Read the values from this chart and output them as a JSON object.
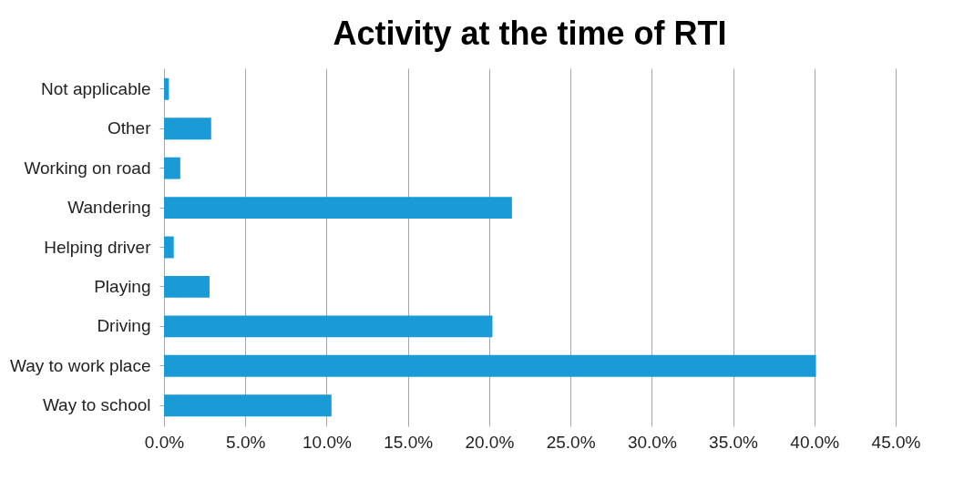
{
  "chart_data": {
    "type": "bar",
    "orientation": "horizontal",
    "title": "Activity at the time of RTI",
    "categories": [
      "Not applicable",
      "Other",
      "Working on road",
      "Wandering",
      "Helping driver",
      "Playing",
      "Driving",
      "Way to work place",
      "Way to school"
    ],
    "values": [
      0.3,
      2.9,
      1.0,
      21.4,
      0.6,
      2.8,
      20.2,
      40.1,
      10.3
    ],
    "color": "#1a9ad6",
    "xlim": [
      0,
      45
    ],
    "xticks": [
      {
        "value": 0,
        "label": "0.0%"
      },
      {
        "value": 5,
        "label": "5.0%"
      },
      {
        "value": 10,
        "label": "10.0%"
      },
      {
        "value": 15,
        "label": "15.0%"
      },
      {
        "value": 20,
        "label": "20.0%"
      },
      {
        "value": 25,
        "label": "25.0%"
      },
      {
        "value": 30,
        "label": "30.0%"
      },
      {
        "value": 35,
        "label": "35.0%"
      },
      {
        "value": 40,
        "label": "40.0%"
      },
      {
        "value": 45,
        "label": "45.0%"
      }
    ],
    "grid": "x"
  }
}
